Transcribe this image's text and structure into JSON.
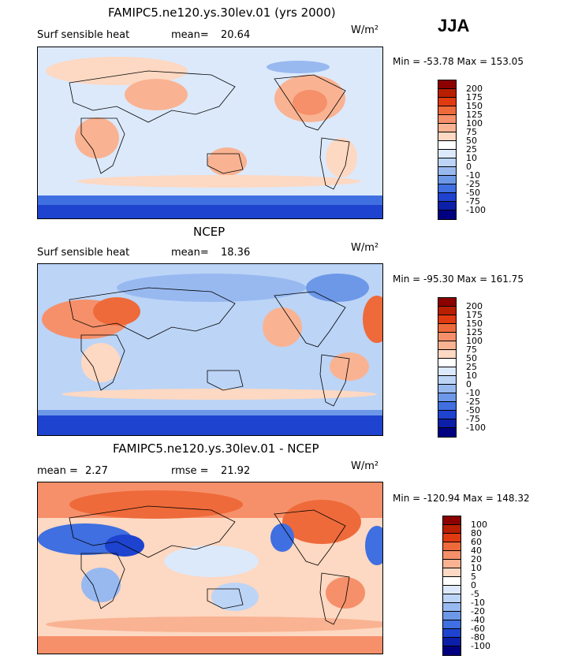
{
  "season": "JJA",
  "panels": [
    {
      "title": "FAMIPC5.ne120.ys.30lev.01 (yrs 2000)",
      "variable": "Surf sensible heat",
      "stat1_label": "mean=",
      "stat1_value": "20.64",
      "units": "W/m²",
      "minmax": "Min = -53.78  Max = 153.05",
      "levels": [
        "200",
        "175",
        "150",
        "125",
        "100",
        "75",
        "50",
        "25",
        "10",
        "0",
        "-10",
        "-25",
        "-50",
        "-75",
        "-100"
      ],
      "colors": [
        "#8b0000",
        "#b81e00",
        "#e03a10",
        "#ee6a3a",
        "#f6906a",
        "#f9b392",
        "#fdd8c2",
        "#ffffff",
        "#dce9fb",
        "#bcd4f6",
        "#98b9f0",
        "#6d98e8",
        "#3f6fe0",
        "#1e43cf",
        "#0c1fa8",
        "#000080"
      ]
    },
    {
      "title": "NCEP",
      "variable": "Surf sensible heat",
      "stat1_label": "mean=",
      "stat1_value": "18.36",
      "units": "W/m²",
      "minmax": "Min = -95.30  Max = 161.75",
      "levels": [
        "200",
        "175",
        "150",
        "125",
        "100",
        "75",
        "50",
        "25",
        "10",
        "0",
        "-10",
        "-25",
        "-50",
        "-75",
        "-100"
      ],
      "colors": [
        "#8b0000",
        "#b81e00",
        "#e03a10",
        "#ee6a3a",
        "#f6906a",
        "#f9b392",
        "#fdd8c2",
        "#ffffff",
        "#dce9fb",
        "#bcd4f6",
        "#98b9f0",
        "#6d98e8",
        "#3f6fe0",
        "#1e43cf",
        "#0c1fa8",
        "#000080"
      ]
    },
    {
      "title": "FAMIPC5.ne120.ys.30lev.01 - NCEP",
      "stat1_label": "mean =",
      "stat1_value": "2.27",
      "stat2_label": "rmse =",
      "stat2_value": "21.92",
      "units": "W/m²",
      "minmax": "Min = -120.94  Max = 148.32",
      "levels": [
        "100",
        "80",
        "60",
        "40",
        "20",
        "10",
        "5",
        "0",
        "-5",
        "-10",
        "-20",
        "-40",
        "-60",
        "-80",
        "-100"
      ],
      "colors": [
        "#8b0000",
        "#b81e00",
        "#e03a10",
        "#ee6a3a",
        "#f6906a",
        "#f9b392",
        "#fdd8c2",
        "#ffffff",
        "#dce9fb",
        "#bcd4f6",
        "#98b9f0",
        "#6d98e8",
        "#3f6fe0",
        "#1e43cf",
        "#0c1fa8",
        "#000080"
      ]
    }
  ]
}
